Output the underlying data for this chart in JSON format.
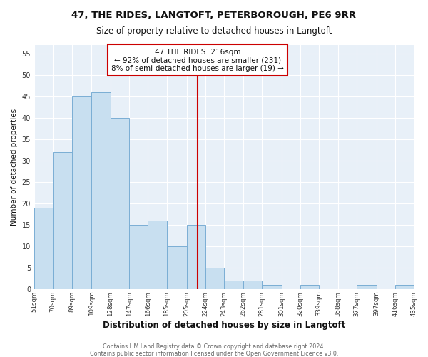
{
  "title": "47, THE RIDES, LANGTOFT, PETERBOROUGH, PE6 9RR",
  "subtitle": "Size of property relative to detached houses in Langtoft",
  "xlabel": "Distribution of detached houses by size in Langtoft",
  "ylabel": "Number of detached properties",
  "bar_edges": [
    51,
    70,
    89,
    109,
    128,
    147,
    166,
    185,
    205,
    224,
    243,
    262,
    281,
    301,
    320,
    339,
    358,
    377,
    397,
    416,
    435
  ],
  "bar_heights": [
    19,
    32,
    45,
    46,
    40,
    15,
    16,
    10,
    15,
    5,
    2,
    2,
    1,
    0,
    1,
    0,
    0,
    1,
    0,
    1
  ],
  "bar_color": "#c8dff0",
  "bar_edge_color": "#7aaed4",
  "reference_line_x": 216,
  "reference_line_color": "#cc0000",
  "ylim": [
    0,
    57
  ],
  "yticks": [
    0,
    5,
    10,
    15,
    20,
    25,
    30,
    35,
    40,
    45,
    50,
    55
  ],
  "tick_labels": [
    "51sqm",
    "70sqm",
    "89sqm",
    "109sqm",
    "128sqm",
    "147sqm",
    "166sqm",
    "185sqm",
    "205sqm",
    "224sqm",
    "243sqm",
    "262sqm",
    "281sqm",
    "301sqm",
    "320sqm",
    "339sqm",
    "358sqm",
    "377sqm",
    "397sqm",
    "416sqm",
    "435sqm"
  ],
  "annotation_title": "47 THE RIDES: 216sqm",
  "annotation_line1": "← 92% of detached houses are smaller (231)",
  "annotation_line2": "8% of semi-detached houses are larger (19) →",
  "annotation_box_facecolor": "#ffffff",
  "annotation_box_edgecolor": "#cc0000",
  "footnote1": "Contains HM Land Registry data © Crown copyright and database right 2024.",
  "footnote2": "Contains public sector information licensed under the Open Government Licence v3.0.",
  "fig_facecolor": "#ffffff",
  "axes_facecolor": "#e8f0f8",
  "grid_color": "#ffffff",
  "title_color": "#111111",
  "label_color": "#111111",
  "tick_color": "#333333",
  "footnote_color": "#666666"
}
